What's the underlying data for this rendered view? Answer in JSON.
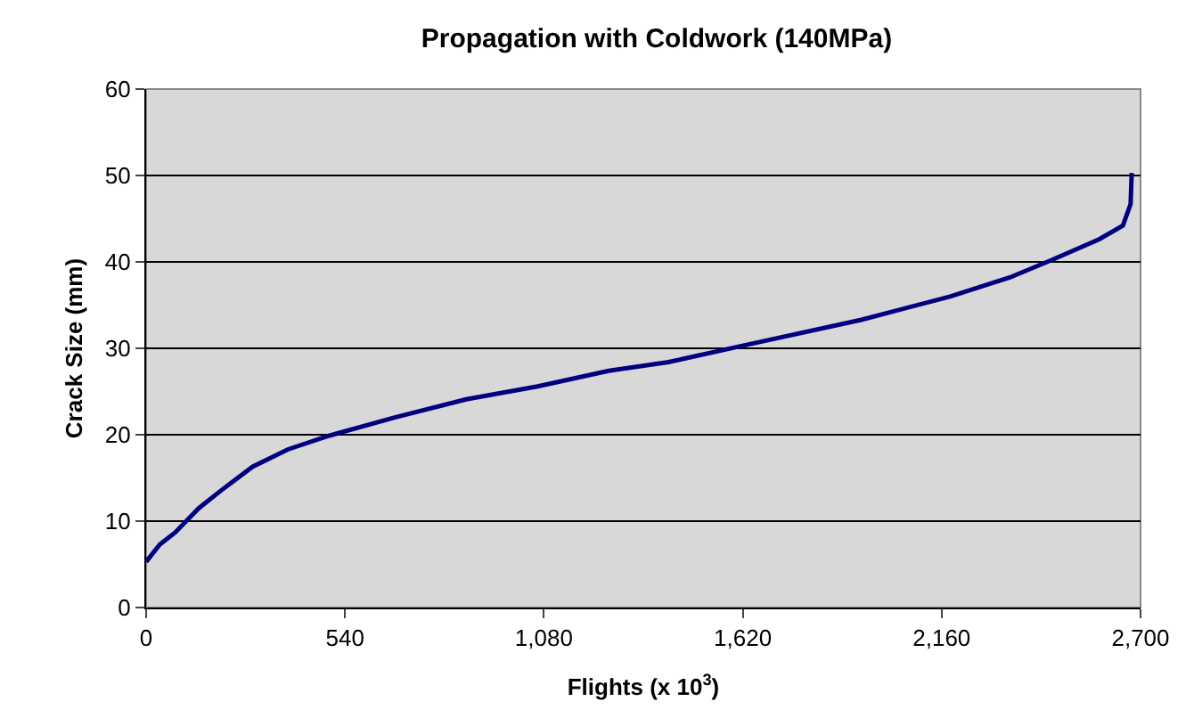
{
  "chart_data": {
    "type": "line",
    "title": "Propagation with Coldwork (140MPa)",
    "xlabel": "Flights (x 10$^{3}$)",
    "ylabel": "Crack Size (mm)",
    "x": [
      0,
      37,
      79,
      143,
      208,
      289,
      385,
      498,
      675,
      869,
      1063,
      1256,
      1418,
      1619,
      1942,
      2183,
      2345,
      2458,
      2587,
      2652,
      2673,
      2676
    ],
    "series": [
      {
        "color": "#000080",
        "values": [
          5.3,
          7.3,
          8.7,
          11.5,
          13.7,
          16.3,
          18.3,
          19.9,
          22,
          24.1,
          25.6,
          27.4,
          28.4,
          30.3,
          33.3,
          36,
          38.2,
          40.2,
          42.6,
          44.2,
          46.7,
          50.3
        ]
      }
    ],
    "xlim": [
      0,
      2700
    ],
    "xticks": [
      0,
      {
        "value": 540,
        "label": "540"
      },
      {
        "value": 1080,
        "label": "1,080"
      },
      {
        "value": 1620,
        "label": "1,620"
      },
      {
        "value": 2160,
        "label": "2,160"
      },
      {
        "value": 2700,
        "label": "2,700"
      }
    ],
    "ylim": [
      0,
      60
    ],
    "yticks": [
      0,
      10,
      20,
      30,
      40,
      50,
      60
    ],
    "grid": "y",
    "marker": "none",
    "line_style": "solid"
  }
}
